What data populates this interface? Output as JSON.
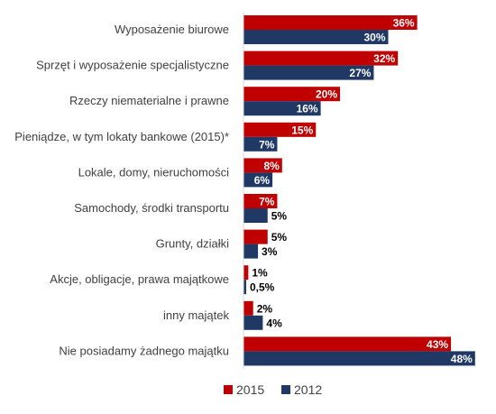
{
  "chart_data": {
    "type": "bar",
    "orientation": "horizontal",
    "categories": [
      "Wyposażenie biurowe",
      "Sprzęt i wyposażenie specjalistyczne",
      "Rzeczy niematerialne i prawne",
      "Pieniądze, w tym lokaty bankowe (2015)*",
      "Lokale, domy, nieruchomości",
      "Samochody, środki transportu",
      "Grunty, działki",
      "Akcje, obligacje, prawa majątkowe",
      "inny majątek",
      "Nie posiadamy żadnego majątku"
    ],
    "series": [
      {
        "name": "2015",
        "color": "#C00000",
        "values": [
          36,
          32,
          20,
          15,
          8,
          7,
          5,
          1,
          2,
          43
        ],
        "labels": [
          "36%",
          "32%",
          "20%",
          "15%",
          "8%",
          "7%",
          "5%",
          "1%",
          "2%",
          "43%"
        ]
      },
      {
        "name": "2012",
        "color": "#1F3864",
        "values": [
          30,
          27,
          16,
          7,
          6,
          5,
          3,
          0.5,
          4,
          48
        ],
        "labels": [
          "30%",
          "27%",
          "16%",
          "7%",
          "6%",
          "5%",
          "3%",
          "0,5%",
          "4%",
          "48%"
        ]
      }
    ],
    "xlim": [
      0,
      50
    ],
    "grid": false,
    "legend_position": "bottom"
  }
}
